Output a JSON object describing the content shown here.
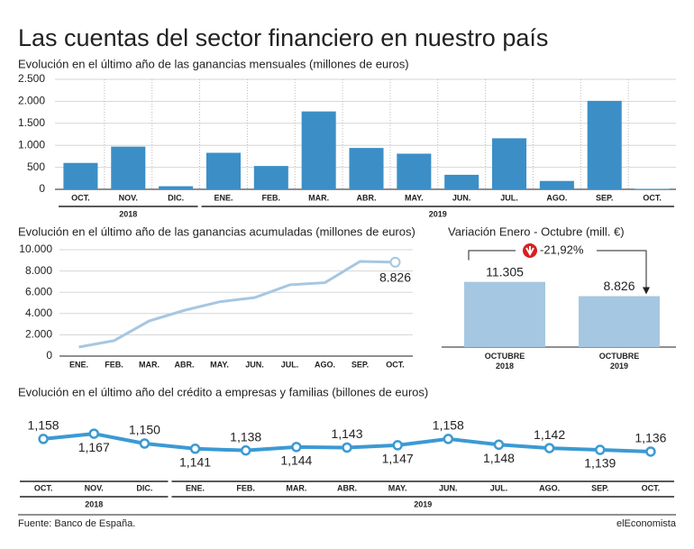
{
  "title": "Las cuentas del sector financiero en nuestro país",
  "source": "Fuente: Banco de España.",
  "brand": "elEconomista",
  "chart_data": [
    {
      "type": "bar",
      "title": "Evolución en el último año de las ganancias mensuales  (millones de euros)",
      "categories": [
        "OCT.",
        "NOV.",
        "DIC.",
        "ENE.",
        "FEB.",
        "MAR.",
        "ABR.",
        "MAY.",
        "JUN.",
        "JUL.",
        "AGO.",
        "SEP.",
        "OCT."
      ],
      "values": [
        600,
        970,
        70,
        830,
        530,
        1770,
        940,
        810,
        330,
        1160,
        190,
        2010,
        10
      ],
      "color": "#3b8fc6",
      "groups": [
        {
          "label": "2018",
          "count": 3
        },
        {
          "label": "2019",
          "count": 10
        }
      ],
      "ylim": [
        0,
        2500
      ],
      "yticks": [
        0,
        500,
        {
          "value": 1000,
          "label": "1.000"
        },
        {
          "value": 1500,
          "label": "1.500"
        },
        {
          "value": 2000,
          "label": "2.000"
        },
        {
          "value": 2500,
          "label": "2.500"
        }
      ],
      "grid": true
    },
    {
      "type": "line",
      "title": "Evolución en el último año de las ganancias acumuladas (millones de euros)",
      "categories": [
        "ENE.",
        "FEB.",
        "MAR.",
        "ABR.",
        "MAY.",
        "JUN.",
        "JUL.",
        "AGO.",
        "SEP.",
        "OCT."
      ],
      "values": [
        850,
        1450,
        3300,
        4300,
        5100,
        5500,
        6700,
        6900,
        8900,
        8826
      ],
      "value_labels": [
        null,
        null,
        null,
        null,
        null,
        null,
        null,
        null,
        null,
        "8.826"
      ],
      "color": "#a6c7e1",
      "ylim": [
        0,
        10000
      ],
      "yticks": [
        0,
        {
          "value": 2000,
          "label": "2.000"
        },
        {
          "value": 4000,
          "label": "4.000"
        },
        {
          "value": 6000,
          "label": "6.000"
        },
        {
          "value": 8000,
          "label": "8.000"
        },
        {
          "value": 10000,
          "label": "10.000"
        }
      ],
      "grid": true
    },
    {
      "type": "bar",
      "title": "Variación Enero - Octubre (mill. €)",
      "categories": [
        "OCTUBRE 2018",
        "OCTUBRE 2019"
      ],
      "values": [
        11305,
        8826
      ],
      "value_labels": [
        "11.305",
        "8.826"
      ],
      "annotation": "-21,92%",
      "color": "#a6c7e1",
      "ylim": [
        0,
        12500
      ]
    },
    {
      "type": "line",
      "title": "Evolución en el último año del crédito a empresas y familias (billones de euros)",
      "categories": [
        "OCT.",
        "NOV.",
        "DIC.",
        "ENE.",
        "FEB.",
        "MAR.",
        "ABR.",
        "MAY.",
        "JUN.",
        "JUL.",
        "AGO.",
        "SEP.",
        "OCT."
      ],
      "values": [
        1158,
        1167,
        1150,
        1141,
        1138,
        1144,
        1143,
        1147,
        1158,
        1148,
        1142,
        1139,
        1136
      ],
      "value_labels": [
        "1,158",
        "1,167",
        "1,150",
        "1,141",
        "1,138",
        "1,144",
        "1,143",
        "1,147",
        "1,158",
        "1,148",
        "1,142",
        "1,139",
        "1,136"
      ],
      "color": "#3b9ad3",
      "groups": [
        {
          "label": "2018",
          "count": 3
        },
        {
          "label": "2019",
          "count": 10
        }
      ],
      "ylim": [
        1100,
        1200
      ]
    }
  ]
}
